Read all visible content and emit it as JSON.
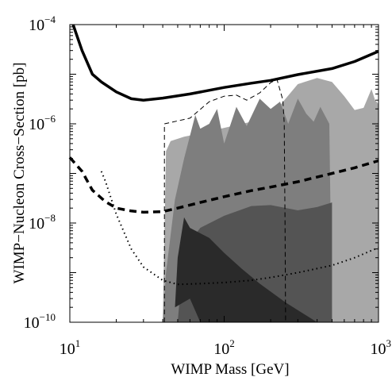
{
  "chart_data": {
    "type": "line",
    "xlabel": "WIMP Mass [GeV]",
    "ylabel": "WIMP−Nucleon Cross−Section [pb]",
    "xscale": "log",
    "yscale": "log",
    "xlim": [
      10,
      1000
    ],
    "ylim": [
      1e-10,
      0.0001
    ],
    "grid": false,
    "x_ticks": [
      {
        "value": 10,
        "base": "10",
        "exp": "1"
      },
      {
        "value": 100,
        "base": "10",
        "exp": "2"
      },
      {
        "value": 1000,
        "base": "10",
        "exp": "3"
      }
    ],
    "y_ticks": [
      {
        "value": 1e-10,
        "base": "10",
        "exp": "−10"
      },
      {
        "value": 1e-08,
        "base": "10",
        "exp": "−8"
      },
      {
        "value": 1e-06,
        "base": "10",
        "exp": "−6"
      },
      {
        "value": 0.0001,
        "base": "10",
        "exp": "−4"
      }
    ],
    "series": [
      {
        "style": "solid-thick",
        "color": "#000000",
        "points": [
          [
            10.5,
            0.0001
          ],
          [
            12,
            3e-05
          ],
          [
            14,
            1e-05
          ],
          [
            16,
            7e-06
          ],
          [
            20,
            4.4e-06
          ],
          [
            25,
            3.2e-06
          ],
          [
            30,
            3e-06
          ],
          [
            40,
            3.3e-06
          ],
          [
            60,
            4e-06
          ],
          [
            100,
            5.4e-06
          ],
          [
            150,
            6.6e-06
          ],
          [
            200,
            7.5e-06
          ],
          [
            300,
            9.8e-06
          ],
          [
            500,
            1.3e-05
          ],
          [
            700,
            1.8e-05
          ],
          [
            1000,
            2.9e-05
          ]
        ]
      },
      {
        "style": "dashed-thick",
        "color": "#000000",
        "points": [
          [
            10,
            2.1e-07
          ],
          [
            12,
            1.1e-07
          ],
          [
            14,
            4.6e-08
          ],
          [
            17,
            2.7e-08
          ],
          [
            20,
            2e-08
          ],
          [
            25,
            1.75e-08
          ],
          [
            30,
            1.65e-08
          ],
          [
            40,
            1.7e-08
          ],
          [
            50,
            2e-08
          ],
          [
            70,
            2.6e-08
          ],
          [
            100,
            3.4e-08
          ],
          [
            150,
            4.5e-08
          ],
          [
            200,
            5.3e-08
          ],
          [
            300,
            6.8e-08
          ],
          [
            500,
            1e-07
          ],
          [
            700,
            1.3e-07
          ],
          [
            1000,
            1.8e-07
          ]
        ]
      },
      {
        "style": "dotted",
        "color": "#000000",
        "points": [
          [
            16,
            1.1e-07
          ],
          [
            17,
            7e-08
          ],
          [
            20,
            1.5e-08
          ],
          [
            25,
            3e-09
          ],
          [
            30,
            1.3e-09
          ],
          [
            40,
            7e-10
          ],
          [
            50,
            5.8e-10
          ],
          [
            70,
            6e-10
          ],
          [
            100,
            6.3e-10
          ],
          [
            150,
            7e-10
          ],
          [
            200,
            8e-10
          ],
          [
            300,
            1e-09
          ],
          [
            500,
            1.4e-09
          ],
          [
            700,
            2e-09
          ],
          [
            1000,
            3.2e-09
          ]
        ]
      },
      {
        "style": "dashed-thin",
        "color": "#000000",
        "points": [
          [
            41,
            1e-10
          ],
          [
            41,
            1e-06
          ],
          [
            60,
            1.3e-06
          ],
          [
            80,
            2.8e-06
          ],
          [
            100,
            3.6e-06
          ],
          [
            120,
            3.8e-06
          ],
          [
            140,
            3e-06
          ],
          [
            170,
            4.2e-06
          ],
          [
            200,
            6.8e-06
          ],
          [
            220,
            7.8e-06
          ],
          [
            240,
            3e-06
          ],
          [
            245,
            1e-06
          ],
          [
            248,
            1e-08
          ],
          [
            250,
            1e-10
          ]
        ]
      }
    ],
    "regions": [
      {
        "fill": "#a8a8a8",
        "points": [
          [
            40,
            1e-10
          ],
          [
            42,
            2.8e-07
          ],
          [
            45,
            4.5e-07
          ],
          [
            55,
            5.5e-07
          ],
          [
            70,
            6.4e-07
          ],
          [
            100,
            8.3e-07
          ],
          [
            150,
            1.1e-06
          ],
          [
            220,
            2e-06
          ],
          [
            300,
            6.3e-06
          ],
          [
            400,
            8.4e-06
          ],
          [
            500,
            7e-06
          ],
          [
            600,
            3.6e-06
          ],
          [
            700,
            1.9e-06
          ],
          [
            800,
            2.1e-06
          ],
          [
            900,
            5e-06
          ],
          [
            950,
            3e-06
          ],
          [
            1000,
            2.5e-06
          ],
          [
            1000,
            1e-10
          ]
        ]
      },
      {
        "fill": "#7e7e7e",
        "points": [
          [
            40,
            1e-10
          ],
          [
            42,
            1e-09
          ],
          [
            48,
            3e-08
          ],
          [
            55,
            2e-07
          ],
          [
            65,
            1.5e-06
          ],
          [
            70,
            8e-07
          ],
          [
            80,
            1e-06
          ],
          [
            90,
            2e-06
          ],
          [
            100,
            4e-07
          ],
          [
            120,
            2.2e-06
          ],
          [
            140,
            9e-07
          ],
          [
            170,
            3.2e-06
          ],
          [
            200,
            2e-06
          ],
          [
            230,
            2.8e-06
          ],
          [
            260,
            1e-06
          ],
          [
            300,
            3.2e-06
          ],
          [
            340,
            1.6e-06
          ],
          [
            380,
            1.1e-06
          ],
          [
            420,
            2.2e-06
          ],
          [
            480,
            1e-06
          ],
          [
            500,
            1e-10
          ]
        ]
      },
      {
        "fill": "#545454",
        "points": [
          [
            50,
            1e-10
          ],
          [
            55,
            3e-09
          ],
          [
            70,
            8e-09
          ],
          [
            100,
            1.4e-08
          ],
          [
            150,
            2.2e-08
          ],
          [
            200,
            2.3e-08
          ],
          [
            300,
            1.8e-08
          ],
          [
            400,
            2.1e-08
          ],
          [
            500,
            2.6e-08
          ],
          [
            500,
            1e-10
          ]
        ]
      },
      {
        "fill": "#2a2a2a",
        "points": [
          [
            48,
            2e-10
          ],
          [
            50,
            2e-09
          ],
          [
            55,
            1.3e-08
          ],
          [
            60,
            8e-09
          ],
          [
            80,
            5e-09
          ],
          [
            100,
            2.5e-09
          ],
          [
            130,
            1.2e-09
          ],
          [
            170,
            6e-10
          ],
          [
            250,
            2.5e-10
          ],
          [
            400,
            1e-10
          ],
          [
            70,
            1e-10
          ],
          [
            60,
            3e-10
          ]
        ]
      }
    ]
  }
}
